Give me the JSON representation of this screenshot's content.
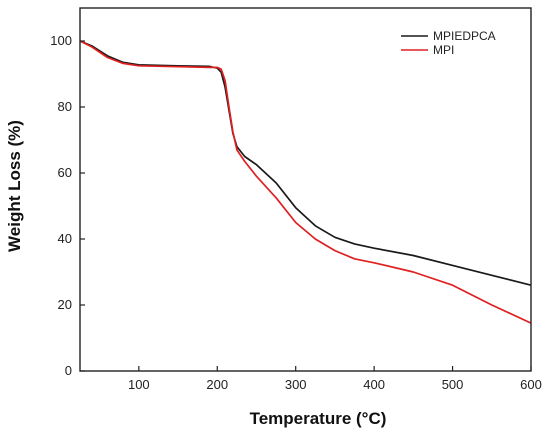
{
  "chart_data": {
    "type": "line",
    "title": "",
    "xlabel": "Temperature (°C)",
    "ylabel": "Weight Loss (%)",
    "xlim": [
      25,
      600
    ],
    "ylim": [
      0,
      110
    ],
    "x_ticks": [
      100,
      200,
      300,
      400,
      500,
      600
    ],
    "y_ticks": [
      0,
      20,
      40,
      60,
      80,
      100
    ],
    "grid": false,
    "legend": "top-right",
    "series": [
      {
        "name": "MPIEDPCA",
        "color": "#1a1a1a",
        "points": [
          [
            25,
            100
          ],
          [
            40,
            98.5
          ],
          [
            60,
            95.5
          ],
          [
            80,
            93.5
          ],
          [
            100,
            92.8
          ],
          [
            150,
            92.5
          ],
          [
            190,
            92.3
          ],
          [
            200,
            91.8
          ],
          [
            205,
            90.5
          ],
          [
            210,
            86
          ],
          [
            215,
            79
          ],
          [
            220,
            72
          ],
          [
            225,
            68
          ],
          [
            235,
            65
          ],
          [
            250,
            62.5
          ],
          [
            275,
            57
          ],
          [
            300,
            49.5
          ],
          [
            325,
            44
          ],
          [
            350,
            40.5
          ],
          [
            375,
            38.5
          ],
          [
            400,
            37.2
          ],
          [
            450,
            35
          ],
          [
            500,
            32
          ],
          [
            550,
            29
          ],
          [
            600,
            26
          ]
        ]
      },
      {
        "name": "MPI",
        "color": "#e02020",
        "points": [
          [
            25,
            100
          ],
          [
            40,
            98.2
          ],
          [
            60,
            95
          ],
          [
            80,
            93.2
          ],
          [
            100,
            92.5
          ],
          [
            150,
            92.2
          ],
          [
            190,
            92
          ],
          [
            200,
            92
          ],
          [
            205,
            91.5
          ],
          [
            210,
            88
          ],
          [
            215,
            80
          ],
          [
            220,
            72.5
          ],
          [
            225,
            67
          ],
          [
            235,
            63.5
          ],
          [
            250,
            59
          ],
          [
            275,
            52.5
          ],
          [
            300,
            45
          ],
          [
            325,
            40
          ],
          [
            350,
            36.5
          ],
          [
            375,
            34
          ],
          [
            400,
            32.8
          ],
          [
            450,
            30
          ],
          [
            500,
            26
          ],
          [
            550,
            20
          ],
          [
            600,
            14.5
          ]
        ]
      }
    ]
  }
}
